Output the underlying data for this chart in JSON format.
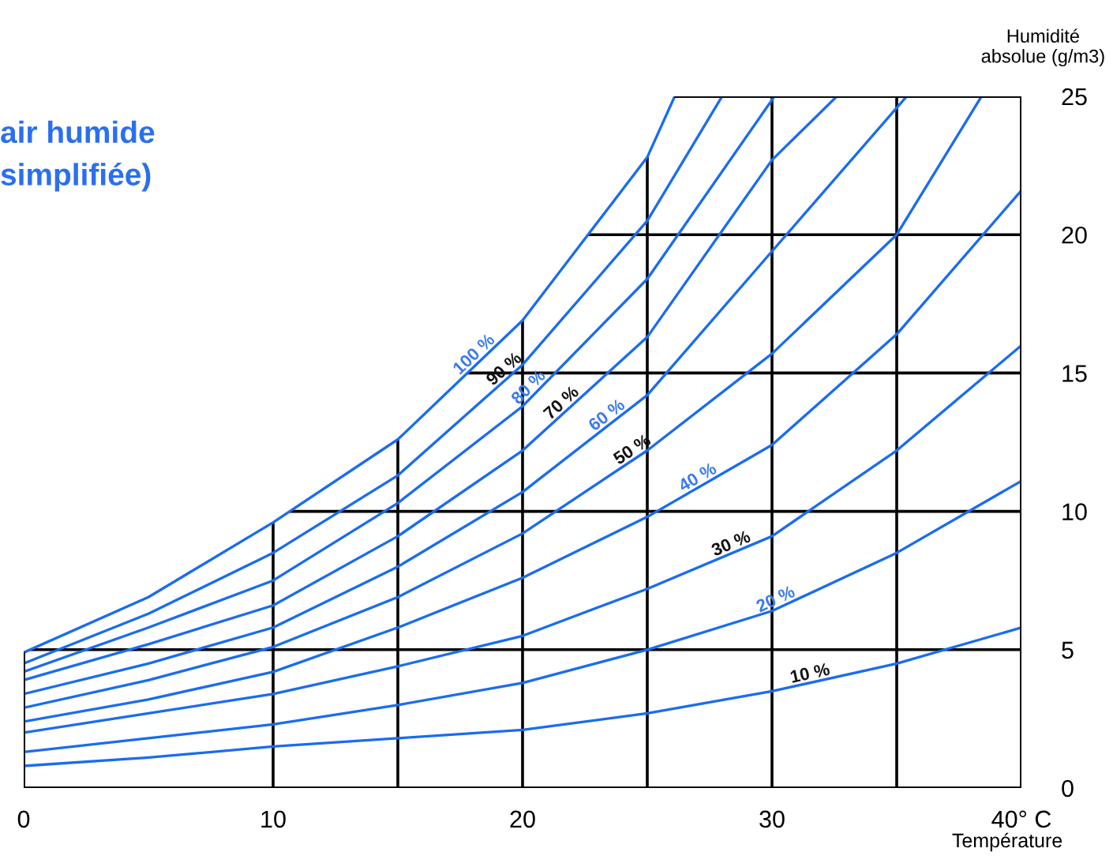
{
  "chart_data": {
    "type": "line",
    "title": "air humide\nsimplifiée)",
    "xlabel": "Température",
    "ylabel": "Humidité\nabsolue (g/m3)",
    "xlim": [
      0,
      40
    ],
    "ylim": [
      0,
      25
    ],
    "xticks": [
      0,
      10,
      {
        "value": 15,
        "label": null
      },
      20,
      {
        "value": 25,
        "label": null
      },
      30,
      {
        "value": 35,
        "label": null
      },
      {
        "value": 40,
        "label": "40° C"
      }
    ],
    "yticks": [
      0,
      5,
      10,
      15,
      20,
      25
    ],
    "grid": true,
    "legend": false,
    "marker": "none",
    "line_style": "solid",
    "series": [
      {
        "name": "100 %",
        "color": "#1a6cf0",
        "x": [
          0,
          5,
          10,
          15,
          20,
          25,
          26.1
        ],
        "values": [
          4.9,
          6.9,
          9.6,
          12.6,
          16.9,
          22.8,
          25
        ]
      },
      {
        "name": "90 %",
        "color": "#1a6cf0",
        "x": [
          0,
          5,
          10,
          15,
          20,
          25,
          28.0
        ],
        "values": [
          4.5,
          6.3,
          8.5,
          11.3,
          15.3,
          20.5,
          25
        ]
      },
      {
        "name": "80 %",
        "color": "#1a6cf0",
        "x": [
          0,
          5,
          10,
          15,
          20,
          25,
          30.1
        ],
        "values": [
          4.2,
          5.8,
          7.5,
          10.3,
          13.8,
          18.4,
          25
        ]
      },
      {
        "name": "70 %",
        "color": "#1a6cf0",
        "x": [
          0,
          5,
          10,
          15,
          20,
          25,
          30,
          32.6
        ],
        "values": [
          3.9,
          5.2,
          6.6,
          9.1,
          12.2,
          16.3,
          22.7,
          25
        ]
      },
      {
        "name": "60 %",
        "color": "#1a6cf0",
        "x": [
          0,
          5,
          10,
          15,
          20,
          25,
          30,
          35.4
        ],
        "values": [
          3.4,
          4.5,
          5.8,
          8.0,
          10.7,
          14.2,
          19.4,
          25
        ]
      },
      {
        "name": "50 %",
        "color": "#1a6cf0",
        "x": [
          0,
          5,
          10,
          15,
          20,
          25,
          30,
          35,
          38.4
        ],
        "values": [
          2.9,
          3.9,
          5.1,
          6.9,
          9.2,
          12.2,
          15.7,
          20.0,
          25
        ]
      },
      {
        "name": "40 %",
        "color": "#1a6cf0",
        "x": [
          0,
          5,
          10,
          15,
          20,
          25,
          30,
          35,
          40
        ],
        "values": [
          2.4,
          3.2,
          4.2,
          5.8,
          7.6,
          9.8,
          12.4,
          16.4,
          21.6
        ]
      },
      {
        "name": "30 %",
        "color": "#1a6cf0",
        "x": [
          0,
          5,
          10,
          15,
          20,
          25,
          30,
          35,
          40
        ],
        "values": [
          2.0,
          2.7,
          3.4,
          4.4,
          5.5,
          7.2,
          9.1,
          12.2,
          16.0
        ]
      },
      {
        "name": "20 %",
        "color": "#1a6cf0",
        "x": [
          0,
          5,
          10,
          15,
          20,
          25,
          30,
          35,
          40
        ],
        "values": [
          1.3,
          1.8,
          2.3,
          3.0,
          3.8,
          5.0,
          6.4,
          8.5,
          11.1
        ]
      },
      {
        "name": "10 %",
        "color": "#1a6cf0",
        "x": [
          0,
          5,
          10,
          15,
          20,
          25,
          30,
          35,
          40
        ],
        "values": [
          0.8,
          1.1,
          1.5,
          1.8,
          2.1,
          2.7,
          3.5,
          4.5,
          5.8
        ]
      }
    ]
  }
}
